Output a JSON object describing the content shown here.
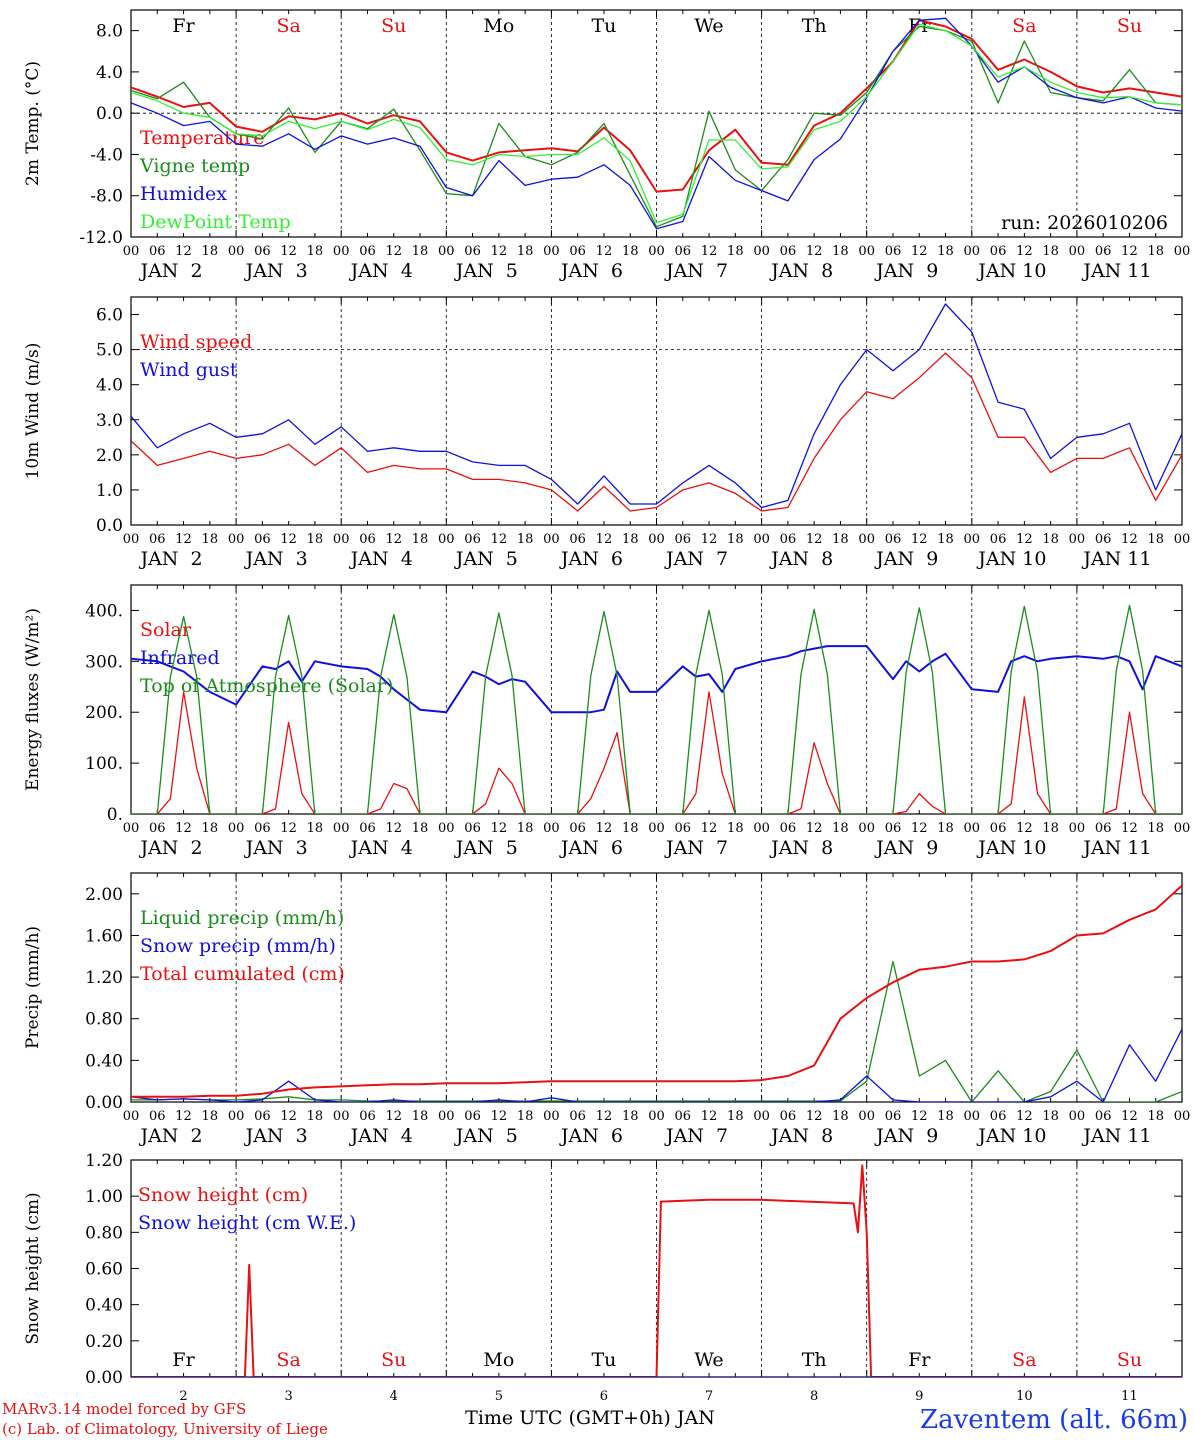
{
  "footer": {
    "model": "MARv3.14 model forced by GFS",
    "lab": "(c) Lab. of Climatology, University of Liege",
    "station": "Zaventem (alt. 66m)",
    "xlabel": "Time UTC (GMT+0h) JAN"
  },
  "run_label": "run: 2026010206",
  "days": [
    "Fr",
    "Sa",
    "Su",
    "Mo",
    "Tu",
    "We",
    "Th",
    "Fr",
    "Sa",
    "Su"
  ],
  "dates": [
    "JAN  2",
    "JAN  3",
    "JAN  4",
    "JAN  5",
    "JAN  6",
    "JAN  7",
    "JAN  8",
    "JAN  9",
    "JAN 10",
    "JAN 11"
  ],
  "bottom_dates": [
    "2",
    "3",
    "4",
    "5",
    "6",
    "7",
    "8",
    "9",
    "10",
    "11"
  ],
  "hour_ticks": [
    "00",
    "06",
    "12",
    "18"
  ],
  "last_tick": "00",
  "colors": {
    "red": "#e81010",
    "green": "#1a8c1a",
    "blue": "#1010dd",
    "lightgreen": "#33ee33",
    "weekend": "#e81010"
  },
  "chart_data": [
    {
      "type": "line",
      "ylabel": "2m Temp. (°C)",
      "ylim": [
        -12,
        10
      ],
      "yticks": [
        "8.0",
        "4.0",
        "0.0",
        "-4.0",
        "-8.0",
        "-12.0"
      ],
      "ytick_values": [
        8,
        4,
        0,
        -4,
        -8,
        -12
      ],
      "ref_line": 0,
      "x_hours": [
        0,
        6,
        12,
        18,
        24,
        30,
        36,
        42,
        48,
        54,
        60,
        66,
        72,
        78,
        84,
        90,
        96,
        102,
        108,
        114,
        120,
        126,
        132,
        138,
        144,
        150,
        156,
        162,
        168,
        174,
        180,
        186,
        192,
        198,
        204,
        210,
        216,
        222,
        228,
        234,
        240
      ],
      "series": [
        {
          "name": "Temperature",
          "color": "red",
          "values": [
            2.5,
            1.6,
            0.6,
            1.0,
            -1.3,
            -1.8,
            -0.3,
            -0.6,
            0.0,
            -1.0,
            -0.2,
            -0.8,
            -3.8,
            -4.6,
            -3.8,
            -3.6,
            -3.4,
            -3.7,
            -1.4,
            -3.6,
            -7.6,
            -7.4,
            -3.6,
            -1.6,
            -4.8,
            -5.0,
            -1.2,
            0.0,
            2.4,
            5.0,
            9.0,
            8.4,
            7.2,
            4.2,
            5.2,
            4.0,
            2.6,
            2.0,
            2.4,
            2.0,
            1.6
          ]
        },
        {
          "name": "Vigne temp",
          "color": "green",
          "values": [
            2.2,
            1.4,
            3.0,
            -0.4,
            -2.0,
            -2.5,
            0.5,
            -3.8,
            -0.8,
            -1.5,
            0.4,
            -3.6,
            -7.8,
            -8.0,
            -1.0,
            -4.2,
            -5.0,
            -3.8,
            -1.0,
            -6.0,
            -11.0,
            -10.0,
            0.2,
            -5.5,
            -7.5,
            -4.5,
            0.0,
            -0.2,
            2.0,
            6.0,
            8.4,
            8.0,
            7.0,
            1.0,
            7.0,
            2.0,
            1.5,
            1.2,
            4.2,
            1.0,
            0.8
          ]
        },
        {
          "name": "Humidex",
          "color": "blue",
          "values": [
            1.0,
            0.0,
            -1.2,
            -0.8,
            -3.0,
            -3.2,
            -2.0,
            -3.5,
            -2.2,
            -3.0,
            -2.4,
            -3.2,
            -7.2,
            -8.0,
            -4.6,
            -7.0,
            -6.4,
            -6.2,
            -5.0,
            -7.0,
            -11.2,
            -10.5,
            -4.2,
            -6.5,
            -7.5,
            -8.5,
            -4.5,
            -2.5,
            1.5,
            6.0,
            9.0,
            9.2,
            6.5,
            3.0,
            4.5,
            2.5,
            1.5,
            1.0,
            1.6,
            0.5,
            0.2
          ]
        },
        {
          "name": "DewPoint Temp",
          "color": "lightgreen",
          "values": [
            2.0,
            1.2,
            0.0,
            -0.4,
            -2.0,
            -2.2,
            -0.8,
            -1.5,
            -0.8,
            -1.6,
            -0.6,
            -1.4,
            -4.5,
            -5.0,
            -4.0,
            -4.2,
            -4.0,
            -4.0,
            -2.4,
            -4.6,
            -10.6,
            -9.8,
            -2.6,
            -2.6,
            -5.4,
            -5.2,
            -1.6,
            -0.8,
            1.6,
            5.0,
            8.6,
            8.0,
            6.5,
            3.5,
            4.5,
            3.0,
            2.0,
            1.5,
            1.6,
            1.0,
            0.8
          ]
        }
      ]
    },
    {
      "type": "line",
      "ylabel": "10m Wind (m/s)",
      "ylim": [
        0,
        6.5
      ],
      "yticks": [
        "6.0",
        "5.0",
        "4.0",
        "3.0",
        "2.0",
        "1.0",
        "0.0"
      ],
      "ytick_values": [
        6,
        5,
        4,
        3,
        2,
        1,
        0
      ],
      "ref_line": 5,
      "x_hours": [
        0,
        6,
        12,
        18,
        24,
        30,
        36,
        42,
        48,
        54,
        60,
        66,
        72,
        78,
        84,
        90,
        96,
        102,
        108,
        114,
        120,
        126,
        132,
        138,
        144,
        150,
        156,
        162,
        168,
        174,
        180,
        186,
        192,
        198,
        204,
        210,
        216,
        222,
        228,
        234,
        240
      ],
      "series": [
        {
          "name": "Wind speed",
          "color": "red",
          "values": [
            2.4,
            1.7,
            1.9,
            2.1,
            1.9,
            2.0,
            2.3,
            1.7,
            2.2,
            1.5,
            1.7,
            1.6,
            1.6,
            1.3,
            1.3,
            1.2,
            1.0,
            0.4,
            1.1,
            0.4,
            0.5,
            1.0,
            1.2,
            0.9,
            0.4,
            0.5,
            1.9,
            3.0,
            3.8,
            3.6,
            4.2,
            4.9,
            4.2,
            2.5,
            2.5,
            1.5,
            1.9,
            1.9,
            2.2,
            0.7,
            2.0
          ]
        },
        {
          "name": "Wind gust",
          "color": "blue",
          "values": [
            3.1,
            2.2,
            2.6,
            2.9,
            2.5,
            2.6,
            3.0,
            2.3,
            2.8,
            2.1,
            2.2,
            2.1,
            2.1,
            1.8,
            1.7,
            1.7,
            1.3,
            0.6,
            1.4,
            0.6,
            0.6,
            1.2,
            1.7,
            1.2,
            0.5,
            0.7,
            2.6,
            4.0,
            5.0,
            4.4,
            5.0,
            6.3,
            5.5,
            3.5,
            3.3,
            1.9,
            2.5,
            2.6,
            2.9,
            1.0,
            2.6
          ]
        }
      ]
    },
    {
      "type": "line",
      "ylabel": "Energy fluxes (W/m²)",
      "ylim": [
        0,
        450
      ],
      "yticks": [
        "400.",
        "300.",
        "200.",
        "100.",
        "0."
      ],
      "ytick_values": [
        400,
        300,
        200,
        100,
        0
      ],
      "x_hours": [
        0,
        6,
        9,
        12,
        15,
        18,
        24,
        30,
        33,
        36,
        39,
        42,
        48,
        54,
        57,
        60,
        63,
        66,
        72,
        78,
        81,
        84,
        87,
        90,
        96,
        102,
        105,
        108,
        111,
        114,
        120,
        126,
        129,
        132,
        135,
        138,
        144,
        150,
        153,
        156,
        159,
        162,
        168,
        174,
        177,
        180,
        183,
        186,
        192,
        198,
        201,
        204,
        207,
        210,
        216,
        222,
        225,
        228,
        231,
        234,
        240
      ],
      "series": [
        {
          "name": "Solar",
          "color": "red",
          "values": [
            0,
            0,
            30,
            240,
            90,
            0,
            0,
            0,
            10,
            180,
            40,
            0,
            0,
            0,
            10,
            60,
            50,
            0,
            0,
            0,
            20,
            90,
            60,
            0,
            0,
            0,
            30,
            90,
            160,
            0,
            0,
            0,
            40,
            240,
            80,
            0,
            0,
            0,
            10,
            140,
            60,
            0,
            0,
            0,
            5,
            40,
            15,
            0,
            0,
            0,
            20,
            230,
            40,
            0,
            0,
            0,
            10,
            200,
            40,
            0,
            0
          ]
        },
        {
          "name": "Infrared",
          "color": "blue",
          "values": [
            305,
            300,
            290,
            280,
            260,
            240,
            215,
            290,
            285,
            300,
            260,
            300,
            290,
            285,
            270,
            245,
            225,
            205,
            200,
            280,
            270,
            255,
            265,
            260,
            200,
            200,
            200,
            205,
            280,
            240,
            240,
            290,
            270,
            275,
            240,
            285,
            300,
            310,
            320,
            325,
            330,
            330,
            330,
            265,
            300,
            280,
            300,
            315,
            245,
            240,
            300,
            310,
            300,
            305,
            310,
            305,
            310,
            300,
            245,
            310,
            290
          ]
        },
        {
          "name": "Top of Atmosphere (Solar)",
          "color": "green",
          "values": [
            0,
            0,
            270,
            388,
            270,
            0,
            0,
            0,
            270,
            390,
            270,
            0,
            0,
            0,
            270,
            392,
            270,
            0,
            0,
            0,
            272,
            395,
            272,
            0,
            0,
            0,
            272,
            398,
            272,
            0,
            0,
            0,
            275,
            400,
            275,
            0,
            0,
            0,
            275,
            402,
            275,
            0,
            0,
            0,
            278,
            405,
            278,
            0,
            0,
            0,
            280,
            408,
            280,
            0,
            0,
            0,
            282,
            410,
            282,
            0,
            0
          ]
        }
      ]
    },
    {
      "type": "line",
      "ylabel": "Precip (mm/h)",
      "ylim": [
        0,
        2.2
      ],
      "yticks": [
        "2.00",
        "1.60",
        "1.20",
        "0.80",
        "0.40",
        "0.00"
      ],
      "ytick_values": [
        2.0,
        1.6,
        1.2,
        0.8,
        0.4,
        0.0
      ],
      "x_hours": [
        0,
        6,
        12,
        18,
        24,
        30,
        36,
        42,
        48,
        54,
        60,
        66,
        72,
        78,
        84,
        90,
        96,
        102,
        108,
        114,
        120,
        126,
        132,
        138,
        144,
        150,
        156,
        162,
        168,
        174,
        180,
        186,
        192,
        198,
        204,
        210,
        216,
        222,
        228,
        234,
        240
      ],
      "series": [
        {
          "name": "Liquid precip (mm/h)",
          "color": "green",
          "values": [
            0.02,
            0.02,
            0.03,
            0.02,
            0.02,
            0.03,
            0.05,
            0.02,
            0.02,
            0.01,
            0.01,
            0.01,
            0.01,
            0.01,
            0.01,
            0.01,
            0.01,
            0.01,
            0.01,
            0.01,
            0.01,
            0.01,
            0.01,
            0.01,
            0.01,
            0.01,
            0.01,
            0.01,
            0.2,
            1.35,
            0.25,
            0.4,
            0.0,
            0.3,
            0.0,
            0.1,
            0.5,
            0.0,
            0.0,
            0.0,
            0.1
          ]
        },
        {
          "name": "Snow precip (mm/h)",
          "color": "blue",
          "values": [
            0.05,
            0.02,
            0.03,
            0.02,
            0.0,
            0.02,
            0.2,
            0.02,
            0.0,
            0.0,
            0.02,
            0.0,
            0.0,
            0.0,
            0.02,
            0.0,
            0.04,
            0.0,
            0.0,
            0.0,
            0.0,
            0.0,
            0.0,
            0.0,
            0.0,
            0.0,
            0.0,
            0.02,
            0.25,
            0.02,
            0.0,
            0.0,
            0.0,
            0.0,
            0.0,
            0.05,
            0.2,
            0.0,
            0.55,
            0.2,
            0.7
          ]
        },
        {
          "name": "Total cumulated (cm)",
          "color": "red",
          "values": [
            0.05,
            0.05,
            0.05,
            0.06,
            0.06,
            0.08,
            0.12,
            0.14,
            0.15,
            0.16,
            0.17,
            0.17,
            0.18,
            0.18,
            0.18,
            0.19,
            0.2,
            0.2,
            0.2,
            0.2,
            0.2,
            0.2,
            0.2,
            0.2,
            0.21,
            0.25,
            0.35,
            0.8,
            1.0,
            1.15,
            1.27,
            1.3,
            1.35,
            1.35,
            1.37,
            1.45,
            1.6,
            1.62,
            1.75,
            1.85,
            2.08
          ]
        }
      ]
    },
    {
      "type": "line",
      "ylabel": "Snow height (cm)",
      "ylim": [
        0,
        1.2
      ],
      "yticks": [
        "1.20",
        "1.00",
        "0.80",
        "0.60",
        "0.40",
        "0.20",
        "0.00"
      ],
      "ytick_values": [
        1.2,
        1.0,
        0.8,
        0.6,
        0.4,
        0.2,
        0.0
      ],
      "x_hours": [
        0,
        24,
        26,
        27,
        28,
        29,
        30,
        96,
        120,
        121,
        132,
        144,
        165,
        166,
        167,
        168,
        169,
        170,
        240
      ],
      "series": [
        {
          "name": "Snow height (cm)",
          "color": "red",
          "values": [
            0,
            0,
            0,
            0.62,
            0,
            0,
            0,
            0,
            0,
            0.97,
            0.98,
            0.98,
            0.96,
            0.8,
            1.17,
            0.8,
            0,
            0,
            0
          ]
        },
        {
          "name": "Snow height (cm W.E.)",
          "color": "blue",
          "values": [
            0,
            0,
            0,
            0,
            0,
            0,
            0,
            0,
            0,
            0,
            0,
            0,
            0,
            0,
            0,
            0,
            0,
            0,
            0
          ]
        }
      ]
    }
  ]
}
